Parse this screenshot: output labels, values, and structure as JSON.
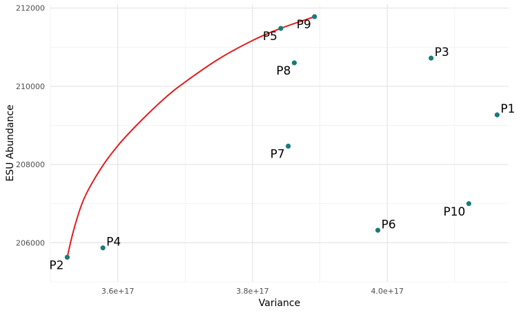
{
  "chart_data": {
    "type": "scatter",
    "xlabel": "Variance",
    "ylabel": "ESU Abundance",
    "xlim": [
      3.5e+17,
      4.18e+17
    ],
    "ylim": [
      205000,
      212100
    ],
    "x_ticks": [
      {
        "value": 3.6e+17,
        "label": "3.6e+17"
      },
      {
        "value": 3.8e+17,
        "label": "3.8e+17"
      },
      {
        "value": 4e+17,
        "label": "4.0e+17"
      }
    ],
    "x_minor_ticks": [
      3.5e+17,
      3.7e+17,
      3.9e+17,
      4.1e+17
    ],
    "y_ticks": [
      {
        "value": 206000,
        "label": "206000"
      },
      {
        "value": 208000,
        "label": "208000"
      },
      {
        "value": 210000,
        "label": "210000"
      },
      {
        "value": 212000,
        "label": "212000"
      }
    ],
    "y_minor_ticks": [
      205000,
      207000,
      209000,
      211000
    ],
    "grid": true,
    "point_color": "#1b7a7a",
    "curve_color": "#e31a1c",
    "points": [
      {
        "label": "P1",
        "x": 4.163e+17,
        "y": 209270,
        "label_pos": "upper-right"
      },
      {
        "label": "P2",
        "x": 3.525e+17,
        "y": 205630,
        "label_pos": "lower-left"
      },
      {
        "label": "P3",
        "x": 4.065e+17,
        "y": 210720,
        "label_pos": "upper-right"
      },
      {
        "label": "P4",
        "x": 3.578e+17,
        "y": 205870,
        "label_pos": "upper-right"
      },
      {
        "label": "P5",
        "x": 3.842e+17,
        "y": 211480,
        "label_pos": "lower-left"
      },
      {
        "label": "P6",
        "x": 3.986e+17,
        "y": 206320,
        "label_pos": "upper-right"
      },
      {
        "label": "P7",
        "x": 3.853e+17,
        "y": 208470,
        "label_pos": "lower-left"
      },
      {
        "label": "P8",
        "x": 3.862e+17,
        "y": 210600,
        "label_pos": "lower-left"
      },
      {
        "label": "P9",
        "x": 3.892e+17,
        "y": 211780,
        "label_pos": "lower-left"
      },
      {
        "label": "P10",
        "x": 4.121e+17,
        "y": 207000,
        "label_pos": "lower-left"
      }
    ],
    "curve": {
      "x": [
        3.525e+17,
        3.535e+17,
        3.55e+17,
        3.575e+17,
        3.6e+17,
        3.63e+17,
        3.67e+17,
        3.7e+17,
        3.75e+17,
        3.8e+17,
        3.84e+17,
        3.892e+17
      ],
      "y": [
        205630,
        206350,
        207130,
        207900,
        208480,
        209040,
        209700,
        210110,
        210700,
        211170,
        211470,
        211780
      ]
    }
  }
}
